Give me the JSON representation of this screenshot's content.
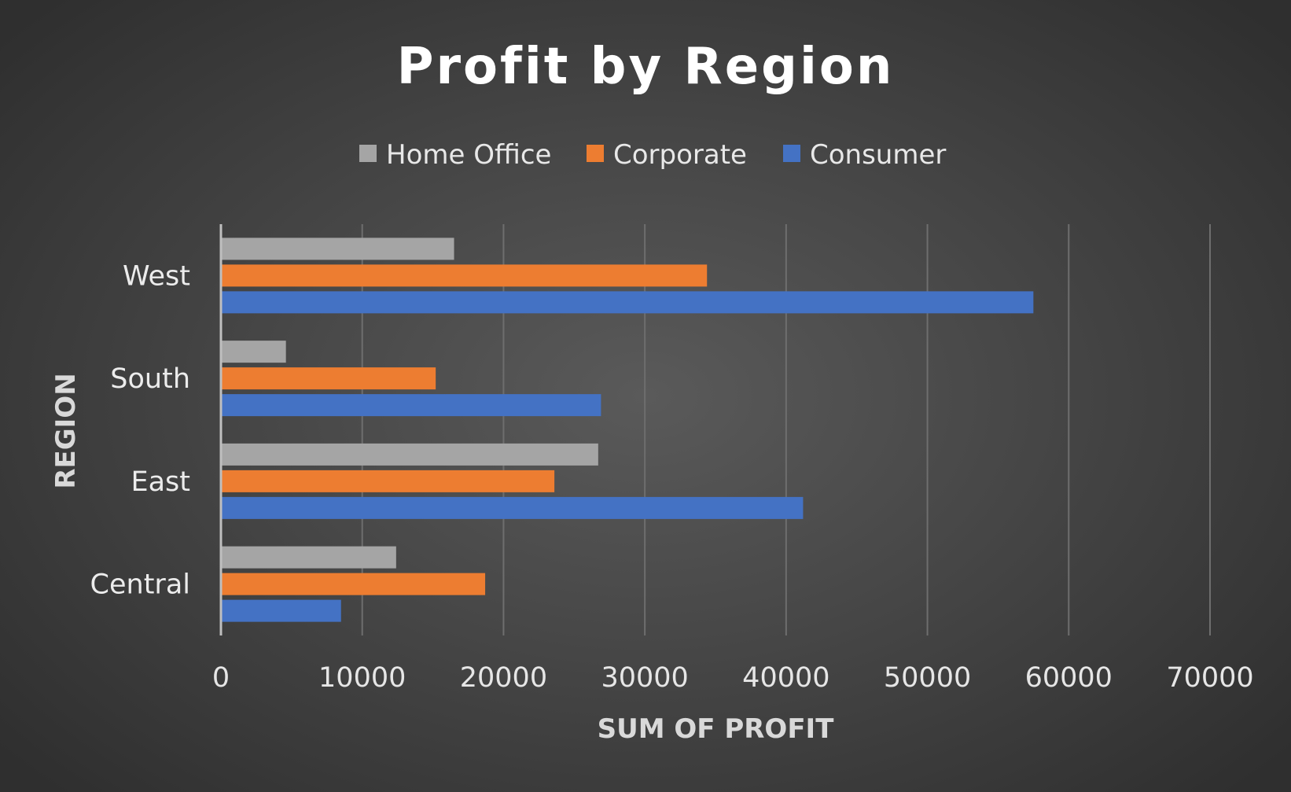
{
  "chart_data": {
    "type": "bar",
    "orientation": "horizontal",
    "title": "Profit by Region",
    "xlabel": "SUM OF PROFIT",
    "ylabel": "REGION",
    "categories": [
      "Central",
      "East",
      "South",
      "West"
    ],
    "series": [
      {
        "name": "Consumer",
        "color": "#4472C4",
        "values": [
          8500,
          41200,
          26900,
          57500
        ]
      },
      {
        "name": "Corporate",
        "color": "#ED7D31",
        "values": [
          18700,
          23600,
          15200,
          34400
        ]
      },
      {
        "name": "Home Office",
        "color": "#A5A5A5",
        "values": [
          12400,
          26700,
          4600,
          16500
        ]
      }
    ],
    "legend_order": [
      "Home Office",
      "Corporate",
      "Consumer"
    ],
    "legend_position": "top",
    "xlim": [
      0,
      70000
    ],
    "xticks": [
      "0",
      "10000",
      "20000",
      "30000",
      "40000",
      "50000",
      "60000",
      "70000"
    ],
    "grid": true
  }
}
